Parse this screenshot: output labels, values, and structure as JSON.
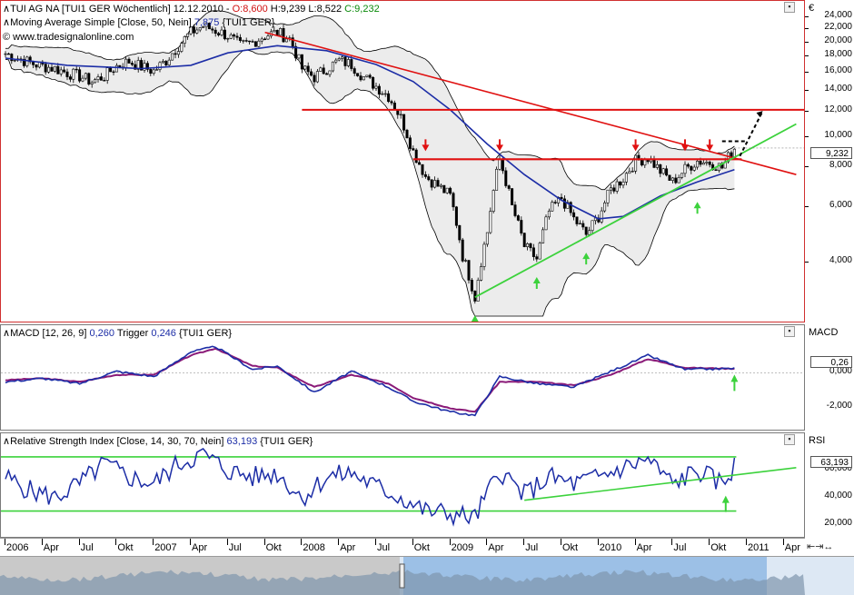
{
  "price_panel": {
    "legend_line1": "TUI AG NA [TUI1 GER  Wöchentlich]  12.12.2010 - ",
    "legend_o": "O:8,600",
    "legend_h": " H:9,239",
    "legend_l": " L:8,522",
    "legend_c": " C:9,232",
    "legend_ma_name": "Moving Average Simple [Close, 50, Nein] ",
    "legend_ma_value": "7,875",
    "legend_ma_symbol": " {TUI1 GER}",
    "legend_site": "www.tradesignalonline.com",
    "currency": "€",
    "last_value": "9,232",
    "ticks": [
      "24,000",
      "22,000",
      "20,000",
      "18,000",
      "16,000",
      "14,000",
      "12,000",
      "10,000",
      "8,000",
      "6,000",
      "4,000"
    ]
  },
  "macd_panel": {
    "legend_name": "MACD [12, 26, 9] ",
    "legend_value": "0,260",
    "legend_trigger_label": " Trigger ",
    "legend_trigger_value": "0,246",
    "legend_symbol": " {TUI1 GER}",
    "axis_title": "MACD",
    "last_value": "0,26",
    "ticks": [
      "0,000",
      "-2,000"
    ]
  },
  "rsi_panel": {
    "legend_name": "Relative Strength Index [Close, 14, 30, 70, Nein] ",
    "legend_value": "63,193",
    "legend_symbol": " {TUI1 GER}",
    "axis_title": "RSI",
    "last_value": "63,193",
    "ticks": [
      "60,000",
      "40,000",
      "20,000"
    ]
  },
  "x_axis": {
    "labels": [
      "2006",
      "Apr",
      "Jul",
      "Okt",
      "2007",
      "Apr",
      "Jul",
      "Okt",
      "2008",
      "Apr",
      "Jul",
      "Okt",
      "2009",
      "Apr",
      "Jul",
      "Okt",
      "2010",
      "Apr",
      "Jul",
      "Okt",
      "2011",
      "Apr"
    ],
    "scroll_icons": "⇤⇥↔"
  },
  "colors": {
    "candle": "#000000",
    "ma50": "#1c2da6",
    "bollinger": "#000000",
    "bollinger_fill": "#ececec",
    "resistance": "#e01010",
    "support": "#3cd23c",
    "macd": "#1c2da6",
    "trigger": "#8a1a78",
    "rsi": "#1c2da6",
    "rsi_bands": "#3cd23c"
  },
  "chart_data": [
    {
      "type": "candlestick",
      "title": "TUI AG NA [TUI1 GER Wöchentlich]",
      "ylabel": "€",
      "yscale": "log",
      "ylim": [
        2700,
        26000
      ],
      "x_start": "2006-01",
      "x_end": "2011-05",
      "close": [
        [
          "2006-01",
          18400
        ],
        [
          "2006-02",
          17800
        ],
        [
          "2006-03",
          17200
        ],
        [
          "2006-04",
          16800
        ],
        [
          "2006-05",
          16500
        ],
        [
          "2006-06",
          16000
        ],
        [
          "2006-07",
          15600
        ],
        [
          "2006-08",
          15000
        ],
        [
          "2006-09",
          15600
        ],
        [
          "2006-10",
          16800
        ],
        [
          "2006-11",
          17400
        ],
        [
          "2006-12",
          16700
        ],
        [
          "2007-01",
          16200
        ],
        [
          "2007-02",
          17500
        ],
        [
          "2007-03",
          19500
        ],
        [
          "2007-04",
          21500
        ],
        [
          "2007-05",
          22500
        ],
        [
          "2007-06",
          21800
        ],
        [
          "2007-07",
          21000
        ],
        [
          "2007-08",
          19500
        ],
        [
          "2007-09",
          20000
        ],
        [
          "2007-10",
          21000
        ],
        [
          "2007-11",
          21500
        ],
        [
          "2007-12",
          20500
        ],
        [
          "2008-01",
          16500
        ],
        [
          "2008-02",
          15500
        ],
        [
          "2008-03",
          16500
        ],
        [
          "2008-04",
          17500
        ],
        [
          "2008-05",
          17000
        ],
        [
          "2008-06",
          15500
        ],
        [
          "2008-07",
          14500
        ],
        [
          "2008-08",
          13500
        ],
        [
          "2008-09",
          11500
        ],
        [
          "2008-10",
          9000
        ],
        [
          "2008-11",
          7500
        ],
        [
          "2008-12",
          7000
        ],
        [
          "2009-01",
          6500
        ],
        [
          "2009-02",
          4200
        ],
        [
          "2009-03",
          3100
        ],
        [
          "2009-04",
          5000
        ],
        [
          "2009-05",
          8500
        ],
        [
          "2009-06",
          6000
        ],
        [
          "2009-07",
          4500
        ],
        [
          "2009-08",
          4100
        ],
        [
          "2009-09",
          5800
        ],
        [
          "2009-10",
          6400
        ],
        [
          "2009-11",
          5500
        ],
        [
          "2009-12",
          4900
        ],
        [
          "2010-01",
          5600
        ],
        [
          "2010-02",
          6800
        ],
        [
          "2010-03",
          7400
        ],
        [
          "2010-04",
          8400
        ],
        [
          "2010-05",
          8600
        ],
        [
          "2010-06",
          7800
        ],
        [
          "2010-07",
          7200
        ],
        [
          "2010-08",
          7900
        ],
        [
          "2010-09",
          8400
        ],
        [
          "2010-10",
          8300
        ],
        [
          "2010-11",
          8000
        ],
        [
          "2010-12",
          9232
        ]
      ],
      "last_bar": {
        "date": "2010-12-12",
        "open": 8.6,
        "high": 9.239,
        "low": 8.522,
        "close": 9.232
      },
      "moving_average_50": [
        [
          "2006-01",
          17800
        ],
        [
          "2006-06",
          16900
        ],
        [
          "2006-12",
          16500
        ],
        [
          "2007-04",
          16900
        ],
        [
          "2007-07",
          18500
        ],
        [
          "2007-11",
          19500
        ],
        [
          "2008-03",
          18800
        ],
        [
          "2008-07",
          17000
        ],
        [
          "2008-10",
          15000
        ],
        [
          "2009-01",
          12200
        ],
        [
          "2009-04",
          9500
        ],
        [
          "2009-07",
          7600
        ],
        [
          "2009-10",
          6300
        ],
        [
          "2010-01",
          5500
        ],
        [
          "2010-03",
          5600
        ],
        [
          "2010-06",
          6500
        ],
        [
          "2010-09",
          7200
        ],
        [
          "2010-12",
          7875
        ]
      ],
      "annotations": {
        "resistance_horizontal": 8500,
        "target_horizontal": 12200,
        "descending_trendline": [
          [
            "2007-10",
            21500
          ],
          [
            "2011-05",
            7600
          ]
        ],
        "ascending_trendline": [
          [
            "2009-03",
            3100
          ],
          [
            "2011-05",
            11000
          ]
        ]
      }
    },
    {
      "type": "line",
      "title": "MACD [12, 26, 9]",
      "ylim": [
        -2.7,
        2.2
      ],
      "last": {
        "macd": 0.26,
        "trigger": 0.246
      },
      "macd": [
        [
          "2006-01",
          -0.5
        ],
        [
          "2006-04",
          -0.3
        ],
        [
          "2006-07",
          -0.6
        ],
        [
          "2006-10",
          0.1
        ],
        [
          "2007-01",
          -0.2
        ],
        [
          "2007-04",
          1.2
        ],
        [
          "2007-06",
          1.5
        ],
        [
          "2007-09",
          0.2
        ],
        [
          "2007-11",
          0.4
        ],
        [
          "2008-02",
          -1.1
        ],
        [
          "2008-05",
          0.1
        ],
        [
          "2008-08",
          -0.8
        ],
        [
          "2008-10",
          -1.6
        ],
        [
          "2009-01",
          -2.2
        ],
        [
          "2009-03",
          -2.4
        ],
        [
          "2009-05",
          -0.2
        ],
        [
          "2009-08",
          -0.6
        ],
        [
          "2009-11",
          -0.8
        ],
        [
          "2010-02",
          0.1
        ],
        [
          "2010-05",
          1.0
        ],
        [
          "2010-08",
          0.2
        ],
        [
          "2010-12",
          0.26
        ]
      ],
      "trigger": [
        [
          "2006-01",
          -0.4
        ],
        [
          "2006-04",
          -0.3
        ],
        [
          "2006-07",
          -0.5
        ],
        [
          "2006-10",
          -0.1
        ],
        [
          "2007-01",
          -0.1
        ],
        [
          "2007-04",
          1.0
        ],
        [
          "2007-06",
          1.4
        ],
        [
          "2007-09",
          0.4
        ],
        [
          "2007-11",
          0.3
        ],
        [
          "2008-02",
          -0.8
        ],
        [
          "2008-05",
          -0.1
        ],
        [
          "2008-08",
          -0.6
        ],
        [
          "2008-10",
          -1.4
        ],
        [
          "2009-01",
          -2.0
        ],
        [
          "2009-03",
          -2.2
        ],
        [
          "2009-05",
          -0.5
        ],
        [
          "2009-08",
          -0.5
        ],
        [
          "2009-11",
          -0.7
        ],
        [
          "2010-02",
          -0.1
        ],
        [
          "2010-05",
          0.8
        ],
        [
          "2010-08",
          0.3
        ],
        [
          "2010-12",
          0.246
        ]
      ]
    },
    {
      "type": "line",
      "title": "Relative Strength Index [Close, 14, 30, 70, Nein]",
      "ylim": [
        15,
        82
      ],
      "bands": [
        30,
        70
      ],
      "last": 63.193,
      "rsi": [
        [
          "2006-01",
          55
        ],
        [
          "2006-03",
          45
        ],
        [
          "2006-05",
          40
        ],
        [
          "2006-07",
          50
        ],
        [
          "2006-09",
          65
        ],
        [
          "2006-11",
          55
        ],
        [
          "2007-01",
          50
        ],
        [
          "2007-03",
          65
        ],
        [
          "2007-05",
          72
        ],
        [
          "2007-07",
          60
        ],
        [
          "2007-09",
          55
        ],
        [
          "2007-11",
          58
        ],
        [
          "2008-01",
          40
        ],
        [
          "2008-03",
          55
        ],
        [
          "2008-05",
          58
        ],
        [
          "2008-07",
          48
        ],
        [
          "2008-09",
          40
        ],
        [
          "2008-11",
          30
        ],
        [
          "2009-01",
          28
        ],
        [
          "2009-03",
          25
        ],
        [
          "2009-05",
          60
        ],
        [
          "2009-07",
          42
        ],
        [
          "2009-09",
          55
        ],
        [
          "2009-11",
          50
        ],
        [
          "2010-01",
          55
        ],
        [
          "2010-03",
          62
        ],
        [
          "2010-05",
          68
        ],
        [
          "2010-07",
          50
        ],
        [
          "2010-09",
          60
        ],
        [
          "2010-11",
          50
        ],
        [
          "2010-12",
          63.193
        ]
      ],
      "annotations": {
        "support_trendline": [
          [
            "2009-07",
            38
          ],
          [
            "2011-05",
            62
          ]
        ]
      }
    }
  ]
}
